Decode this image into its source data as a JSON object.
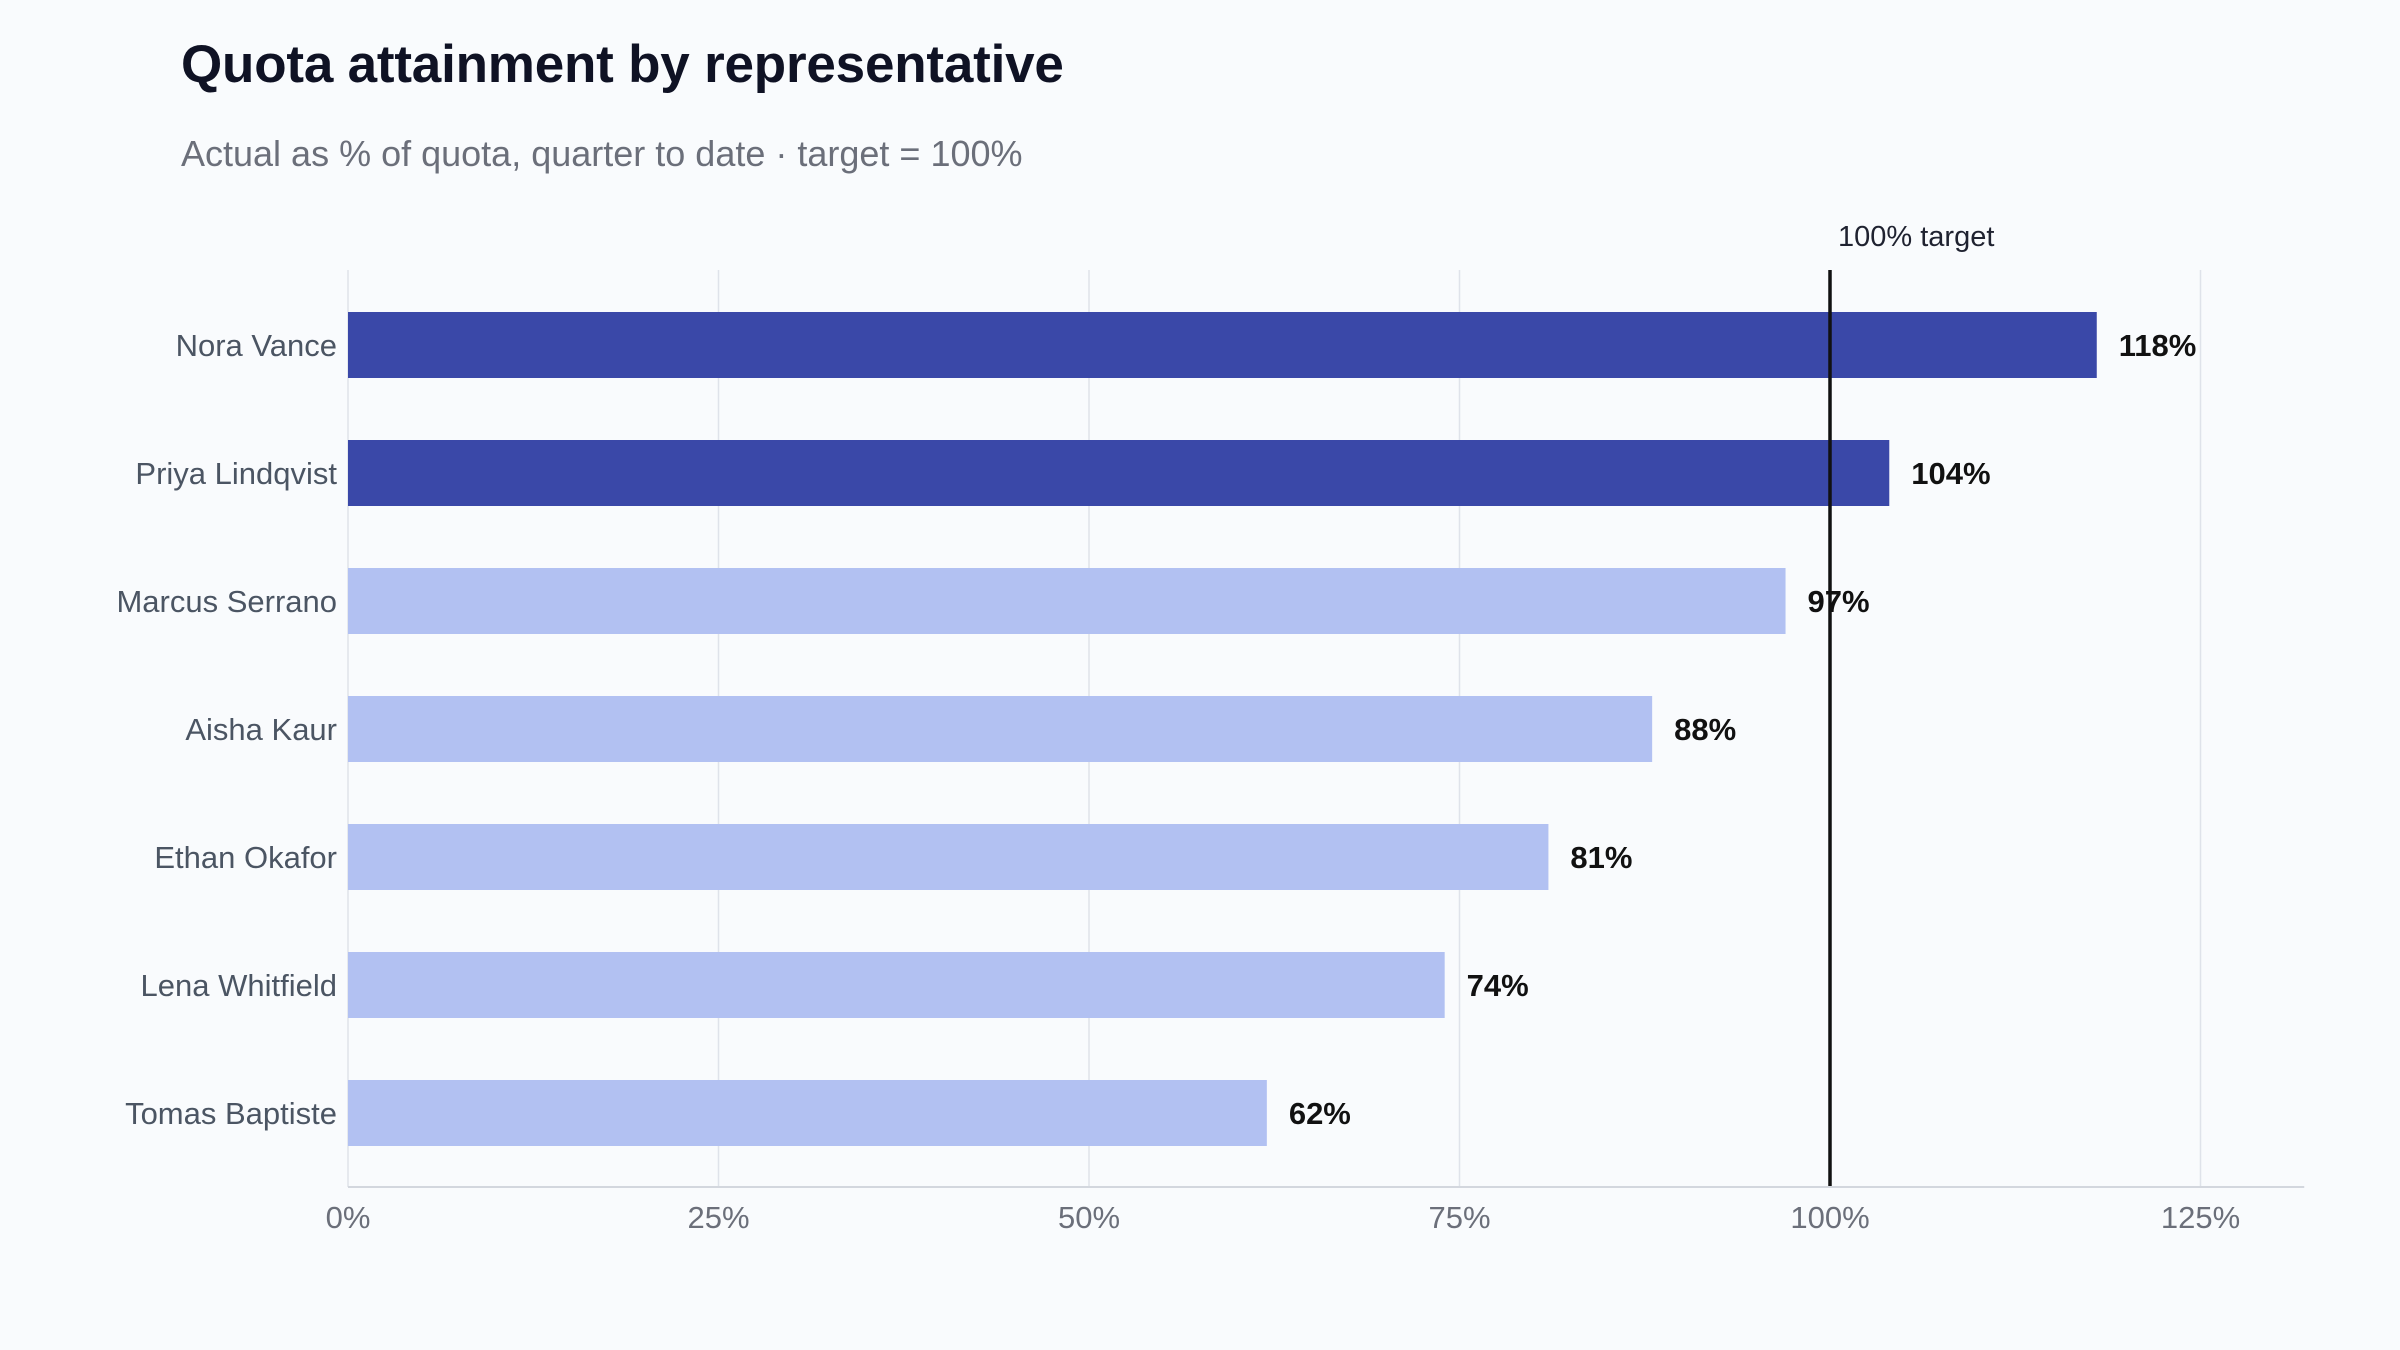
{
  "title": "Quota attainment by representative",
  "subtitle": "Actual as % of quota, quarter to date · target = 100%",
  "colors": {
    "above_target": "#3a48a8",
    "below_target": "#b2c1f2",
    "reference_line": "#111111",
    "gridline": "#dfe3ea"
  },
  "chart_data": {
    "type": "bar",
    "orientation": "horizontal",
    "categories": [
      "Nora Vance",
      "Priya Lindqvist",
      "Marcus Serrano",
      "Aisha Kaur",
      "Ethan Okafor",
      "Lena Whitfield",
      "Tomas Baptiste"
    ],
    "values": [
      118,
      104,
      97,
      88,
      81,
      74,
      62
    ],
    "value_labels": [
      "118%",
      "104%",
      "97%",
      "88%",
      "81%",
      "74%",
      "62%"
    ],
    "xlim": [
      0,
      132
    ],
    "xticks": [
      0,
      25,
      50,
      75,
      100,
      125
    ],
    "xtick_labels": [
      "0%",
      "25%",
      "50%",
      "75%",
      "100%",
      "125%"
    ],
    "reference_line": {
      "value": 100,
      "label": "100% target"
    },
    "grid": "vertical",
    "legend": "none"
  }
}
